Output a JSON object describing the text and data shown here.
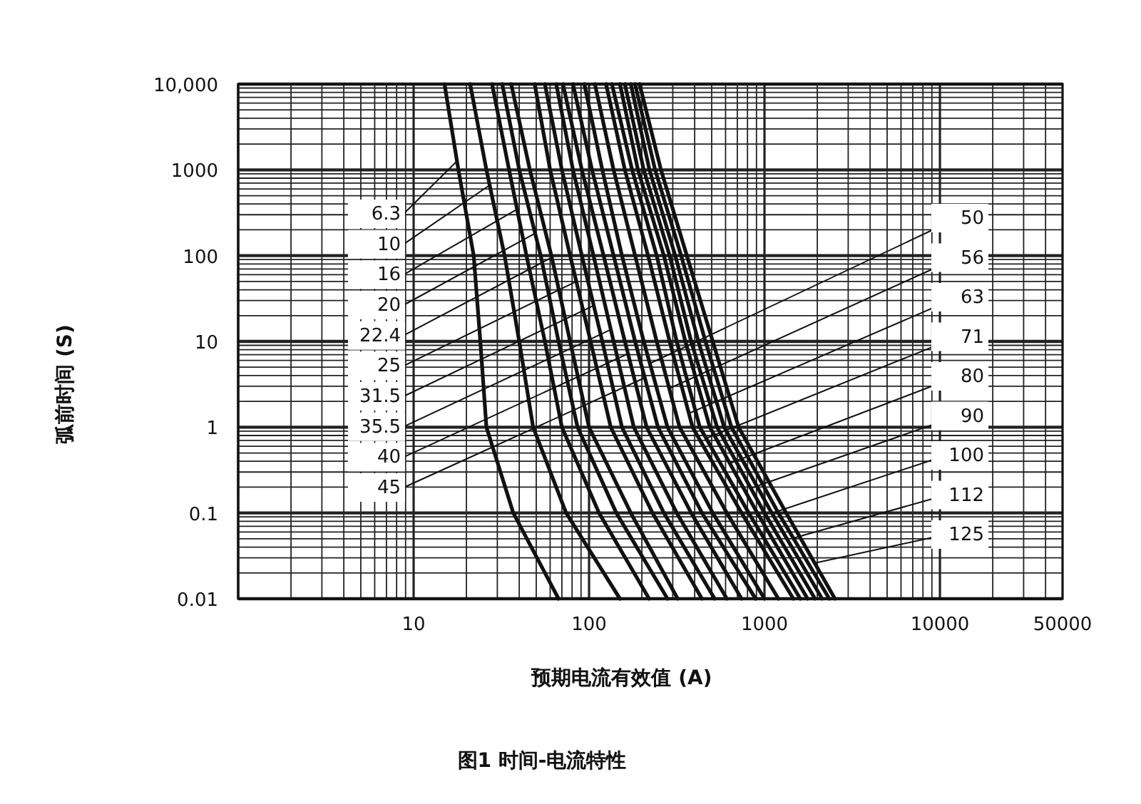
{
  "chart_data": {
    "type": "line",
    "xlabel": "预期电流有效值 (A)",
    "ylabel": "弧前时间 (S)",
    "annotations": [
      "图1 时间-电流特性"
    ],
    "log": "xy",
    "grid": true,
    "legend": false,
    "marker": "none",
    "line_style": "solid",
    "xlim": [
      1,
      50000
    ],
    "ylim": [
      0.01,
      10000
    ],
    "xticks": [
      10,
      100,
      1000,
      10000,
      50000
    ],
    "yticks": [
      {
        "value": 10000,
        "label": "10,000"
      },
      1000,
      100,
      10,
      1,
      0.1,
      0.01
    ],
    "series": [
      {
        "name": "6.3",
        "color": "#111111",
        "x": [
          15,
          18,
          22,
          24,
          26,
          37,
          67
        ],
        "values": [
          10000,
          1000,
          100,
          10,
          1,
          0.1,
          0.01
        ]
      },
      {
        "name": "10",
        "color": "#111111",
        "x": [
          21,
          26,
          33,
          40,
          48,
          74,
          150
        ],
        "values": [
          10000,
          1000,
          100,
          10,
          1,
          0.1,
          0.01
        ]
      },
      {
        "name": "16",
        "color": "#111111",
        "x": [
          28,
          35,
          44,
          56,
          70,
          114,
          220
        ],
        "values": [
          10000,
          1000,
          100,
          10,
          1,
          0.1,
          0.01
        ]
      },
      {
        "name": "20",
        "color": "#111111",
        "x": [
          32,
          40,
          53,
          67,
          86,
          143,
          280
        ],
        "values": [
          10000,
          1000,
          100,
          10,
          1,
          0.1,
          0.01
        ]
      },
      {
        "name": "22.4",
        "color": "#111111",
        "x": [
          36,
          46,
          61,
          78,
          100,
          173,
          320
        ],
        "values": [
          10000,
          1000,
          100,
          10,
          1,
          0.1,
          0.01
        ]
      },
      {
        "name": "25",
        "color": "#111111",
        "x": [
          49,
          60,
          78,
          102,
          133,
          230,
          440
        ],
        "values": [
          10000,
          1000,
          100,
          10,
          1,
          0.1,
          0.01
        ]
      },
      {
        "name": "31.5",
        "color": "#111111",
        "x": [
          56,
          70,
          91,
          119,
          154,
          267,
          520
        ],
        "values": [
          10000,
          1000,
          100,
          10,
          1,
          0.1,
          0.01
        ]
      },
      {
        "name": "35.5",
        "color": "#111111",
        "x": [
          65,
          81,
          106,
          138,
          180,
          316,
          610
        ],
        "values": [
          10000,
          1000,
          100,
          10,
          1,
          0.1,
          0.01
        ]
      },
      {
        "name": "40",
        "color": "#111111",
        "x": [
          71,
          91,
          121,
          160,
          213,
          382,
          740
        ],
        "values": [
          10000,
          1000,
          100,
          10,
          1,
          0.1,
          0.01
        ]
      },
      {
        "name": "45",
        "color": "#111111",
        "x": [
          81,
          104,
          138,
          183,
          247,
          440,
          890
        ],
        "values": [
          10000,
          1000,
          100,
          10,
          1,
          0.1,
          0.01
        ]
      },
      {
        "name": "50",
        "color": "#111111",
        "x": [
          94,
          119,
          154,
          205,
          280,
          507,
          1000
        ],
        "values": [
          10000,
          1000,
          100,
          10,
          1,
          0.1,
          0.01
        ]
      },
      {
        "name": "56",
        "color": "#111111",
        "x": [
          108,
          138,
          183,
          243,
          328,
          610,
          1200
        ],
        "values": [
          10000,
          1000,
          100,
          10,
          1,
          0.1,
          0.01
        ]
      },
      {
        "name": "63",
        "color": "#111111",
        "x": [
          125,
          160,
          217,
          288,
          389,
          740,
          1460
        ],
        "values": [
          10000,
          1000,
          100,
          10,
          1,
          0.1,
          0.01
        ]
      },
      {
        "name": "71",
        "color": "#111111",
        "x": [
          135,
          176,
          243,
          316,
          428,
          813,
          1600
        ],
        "values": [
          10000,
          1000,
          100,
          10,
          1,
          0.1,
          0.01
        ]
      },
      {
        "name": "80",
        "color": "#111111",
        "x": [
          150,
          190,
          267,
          354,
          488,
          910,
          1760
        ],
        "values": [
          10000,
          1000,
          100,
          10,
          1,
          0.1,
          0.01
        ]
      },
      {
        "name": "90",
        "color": "#111111",
        "x": [
          160,
          205,
          288,
          382,
          537,
          1000,
          1940
        ],
        "values": [
          10000,
          1000,
          100,
          10,
          1,
          0.1,
          0.01
        ]
      },
      {
        "name": "100",
        "color": "#111111",
        "x": [
          173,
          221,
          310,
          420,
          589,
          1100,
          2130
        ],
        "values": [
          10000,
          1000,
          100,
          10,
          1,
          0.1,
          0.01
        ]
      },
      {
        "name": "112",
        "color": "#111111",
        "x": [
          183,
          238,
          335,
          461,
          648,
          1200,
          2340
        ],
        "values": [
          10000,
          1000,
          100,
          10,
          1,
          0.1,
          0.01
        ]
      },
      {
        "name": "125",
        "color": "#111111",
        "x": [
          194,
          257,
          361,
          507,
          712,
          1330,
          2520
        ],
        "values": [
          10000,
          1000,
          100,
          10,
          1,
          0.1,
          0.01
        ]
      }
    ]
  }
}
